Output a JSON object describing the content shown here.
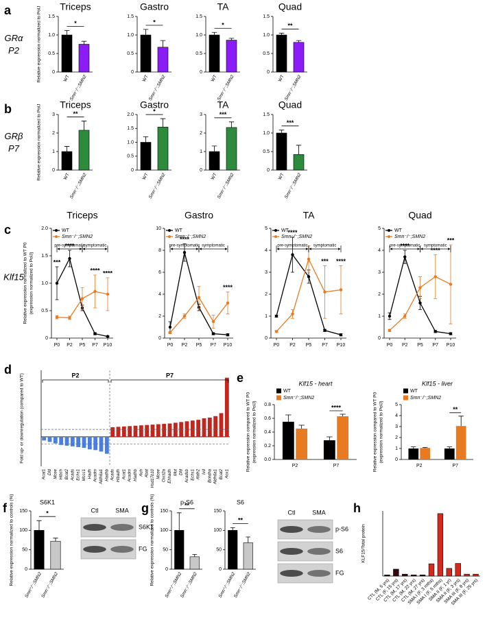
{
  "chart_data": [
    {
      "type": "bar",
      "panel": "a",
      "row_label": [
        "GRα",
        "P2"
      ],
      "title": "Triceps",
      "ylabel": "Relative expression normalized to PolJ",
      "categories": [
        "WT",
        "Smn⁻/⁻;SMN2"
      ],
      "values": [
        1.0,
        0.75
      ],
      "errors": [
        0.12,
        0.08
      ],
      "colors": [
        "#000000",
        "#8a1cf5"
      ],
      "ylim": [
        0,
        1.5
      ],
      "yticks": [
        0,
        0.5,
        {
          "value": 1,
          "label": "1.0"
        },
        1.5
      ],
      "significance": "*"
    },
    {
      "type": "bar",
      "title": "Gastro",
      "categories": [
        "WT",
        "Smn⁻/⁻;SMN2"
      ],
      "values": [
        1.0,
        0.67
      ],
      "errors": [
        0.15,
        0.18
      ],
      "colors": [
        "#000000",
        "#8a1cf5"
      ],
      "ylim": [
        0,
        1.5
      ],
      "yticks": [
        0,
        0.5,
        {
          "value": 1,
          "label": "1.0"
        },
        1.5
      ],
      "significance": "*"
    },
    {
      "type": "bar",
      "title": "TA",
      "categories": [
        "WT",
        "Smn⁻/⁻;SMN2"
      ],
      "values": [
        1.0,
        0.86
      ],
      "errors": [
        0.07,
        0.05
      ],
      "colors": [
        "#000000",
        "#8a1cf5"
      ],
      "ylim": [
        0,
        1.5
      ],
      "yticks": [
        0,
        0.5,
        {
          "value": 1,
          "label": "1.0"
        },
        1.5
      ],
      "significance": "*"
    },
    {
      "type": "bar",
      "title": "Quad",
      "categories": [
        "WT",
        "Smn⁻/⁻;SMN2"
      ],
      "values": [
        1.0,
        0.8
      ],
      "errors": [
        0.05,
        0.05
      ],
      "colors": [
        "#000000",
        "#8a1cf5"
      ],
      "ylim": [
        0,
        1.5
      ],
      "yticks": [
        0,
        0.5,
        {
          "value": 1,
          "label": "1.0"
        },
        1.5
      ],
      "significance": "**"
    },
    {
      "type": "bar",
      "panel": "b",
      "row_label": [
        "GRβ",
        "P7"
      ],
      "title": "Triceps",
      "ylabel": "Relative expression normalized to PolJ",
      "categories": [
        "WT",
        "Smn⁻/⁻;SMN2"
      ],
      "values": [
        1.0,
        2.15
      ],
      "errors": [
        0.28,
        0.5
      ],
      "colors": [
        "#000000",
        "#2e8b3e"
      ],
      "ylim": [
        0,
        3
      ],
      "yticks": [
        0,
        1,
        2,
        3
      ],
      "significance": "**"
    },
    {
      "type": "bar",
      "title": "Gastro",
      "categories": [
        "WT",
        "Smn⁻/⁻;SMN2"
      ],
      "values": [
        1.0,
        1.55
      ],
      "errors": [
        0.2,
        0.3
      ],
      "colors": [
        "#000000",
        "#2e8b3e"
      ],
      "ylim": [
        0,
        2
      ],
      "yticks": [
        0,
        0.5,
        {
          "value": 1,
          "label": "1.0"
        },
        1.5,
        {
          "value": 2,
          "label": "2.0"
        }
      ],
      "significance": "*"
    },
    {
      "type": "bar",
      "title": "TA",
      "categories": [
        "WT",
        "Smn⁻/⁻;SMN2"
      ],
      "values": [
        1.0,
        2.3
      ],
      "errors": [
        0.3,
        0.3
      ],
      "colors": [
        "#000000",
        "#2e8b3e"
      ],
      "ylim": [
        0,
        3
      ],
      "yticks": [
        0,
        1,
        2,
        3
      ],
      "significance": "***"
    },
    {
      "type": "bar",
      "title": "Quad",
      "categories": [
        "WT",
        "Smn⁻/⁻;SMN2"
      ],
      "values": [
        1.0,
        0.42
      ],
      "errors": [
        0.08,
        0.25
      ],
      "colors": [
        "#000000",
        "#2e8b3e"
      ],
      "ylim": [
        0,
        1.5
      ],
      "yticks": [
        0,
        0.5,
        {
          "value": 1,
          "label": "1.0"
        },
        1.5
      ],
      "significance": "***"
    },
    {
      "type": "line",
      "panel": "c",
      "row_label": [
        "Klf15"
      ],
      "title": "Triceps",
      "ylabel": [
        "Relative expression normalized to WT P0",
        "(expression normalized to PolJ)"
      ],
      "categories": [
        "P0",
        "P2",
        "P5",
        "P7",
        "P10"
      ],
      "series": [
        {
          "name": "WT",
          "color": "#000000",
          "values": [
            1.0,
            1.45,
            0.55,
            0.08,
            0.03
          ],
          "errors": [
            0.3,
            0.15,
            0.05,
            0.02,
            0.01
          ]
        },
        {
          "name": "Smn⁻/⁻;SMN2",
          "color": "#e87a22",
          "values": [
            0.38,
            0.37,
            0.72,
            0.85,
            0.8
          ],
          "errors": [
            0.03,
            0.03,
            0.2,
            0.3,
            0.3
          ]
        }
      ],
      "ylim": [
        0,
        2
      ],
      "yticks": [
        0,
        0.5,
        {
          "value": 1,
          "label": "1.0"
        },
        1.5,
        {
          "value": 2,
          "label": "2.0"
        }
      ],
      "stars": [
        "***",
        "****",
        null,
        "****",
        "****"
      ],
      "phases": [
        "pre-symptomatic",
        "symptomatic"
      ]
    },
    {
      "type": "line",
      "title": "Gastro",
      "categories": [
        "P0",
        "P2",
        "P5",
        "P7",
        "P10"
      ],
      "series": [
        {
          "name": "WT",
          "color": "#000000",
          "values": [
            1.0,
            7.8,
            2.8,
            0.4,
            0.3
          ],
          "errors": [
            0.5,
            0.8,
            0.3,
            0.1,
            0.1
          ]
        },
        {
          "name": "Smn⁻/⁻;SMN2",
          "color": "#e87a22",
          "values": [
            0.5,
            2.0,
            3.7,
            1.5,
            3.2
          ],
          "errors": [
            0.1,
            0.2,
            1.0,
            0.6,
            1.0
          ]
        }
      ],
      "ylim": [
        0,
        10
      ],
      "yticks": [
        0,
        2,
        4,
        6,
        8,
        10
      ],
      "stars": [
        null,
        "****",
        null,
        null,
        "****"
      ],
      "phases": [
        "pre-symptomatic",
        "symptomatic"
      ]
    },
    {
      "type": "line",
      "title": "TA",
      "categories": [
        "P0",
        "P2",
        "P5",
        "P7",
        "P10"
      ],
      "series": [
        {
          "name": "WT",
          "color": "#000000",
          "values": [
            1.0,
            3.8,
            2.8,
            0.35,
            0.15
          ],
          "errors": [
            0.05,
            0.8,
            0.3,
            0.05,
            0.05
          ]
        },
        {
          "name": "Smn⁻/⁻;SMN2",
          "color": "#e87a22",
          "values": [
            0.3,
            1.1,
            3.6,
            2.1,
            2.2
          ],
          "errors": [
            0.05,
            0.2,
            0.6,
            1.2,
            1.1
          ]
        }
      ],
      "ylim": [
        0,
        5
      ],
      "yticks": [
        0,
        1,
        2,
        3,
        4,
        5
      ],
      "stars": [
        null,
        "****",
        null,
        "***",
        "****"
      ],
      "phases": [
        "pre-symptomatic",
        "symptomatic"
      ]
    },
    {
      "type": "line",
      "title": "Quad",
      "categories": [
        "P0",
        "P2",
        "P5",
        "P7",
        "P10"
      ],
      "series": [
        {
          "name": "WT",
          "color": "#000000",
          "values": [
            1.0,
            3.7,
            1.6,
            0.3,
            0.2
          ],
          "errors": [
            0.15,
            0.3,
            0.3,
            0.05,
            0.05
          ]
        },
        {
          "name": "Smn⁻/⁻;SMN2",
          "color": "#e87a22",
          "values": [
            0.35,
            1.0,
            2.3,
            2.8,
            2.45
          ],
          "errors": [
            0.05,
            0.1,
            0.5,
            1.0,
            1.8
          ]
        }
      ],
      "ylim": [
        0,
        5
      ],
      "yticks": [
        0,
        1,
        2,
        3,
        4,
        5
      ],
      "stars": [
        null,
        "****",
        null,
        "****",
        "***"
      ],
      "phases": [
        "pre-symptomatic",
        "symptomatic"
      ]
    },
    {
      "type": "waterfall",
      "panel": "d",
      "ylabel": "Fold up- or downregulation (compared to WT)",
      "groups": [
        "P2",
        "P7"
      ],
      "categories": [
        "Acat1",
        "Dld",
        "Mcee",
        "Hibch",
        "Bcat2",
        "Acads",
        "Echs1",
        "Mccc1",
        "Hadh",
        "Acadm",
        "Aldh6a1",
        "Hadhb",
        "Acads",
        "Hibadh",
        "Acat1",
        "Acadm",
        "Hadhb",
        "Auh",
        "Abat",
        "Hsd17b10",
        "Mcee",
        "Oxct2a",
        "Ehhadh",
        "Mut",
        "Dld",
        "Acadsb",
        "Echs1",
        "Aldh2",
        "Ivd",
        "Bckdha",
        "Aldh6a1",
        "Bcat2",
        "Aox1"
      ],
      "values": [
        -0.5,
        -0.7,
        -0.9,
        -1.1,
        -1.2,
        -1.3,
        -1.4,
        -1.5,
        -1.7,
        -1.8,
        -2.0,
        -2.3,
        1.3,
        1.35,
        1.4,
        1.45,
        1.5,
        1.55,
        1.6,
        1.65,
        1.7,
        1.75,
        1.8,
        1.9,
        2.0,
        2.1,
        2.2,
        2.3,
        2.5,
        2.6,
        2.8,
        3.2,
        8.0
      ],
      "color_down": "#4a7fe0",
      "color_up": "#c0271e",
      "reference_lines": [
        1,
        -1
      ],
      "ylim": [
        -4,
        9
      ]
    },
    {
      "type": "grouped",
      "panel": "e",
      "title": "Klf15 - heart",
      "ylabel": [
        "Relative expression compared to WT P0",
        "(expression normalized to PolJ)"
      ],
      "categories": [
        "P2",
        "P7"
      ],
      "series": [
        {
          "name": "WT",
          "color": "#000000",
          "values": [
            0.55,
            0.28
          ],
          "errors": [
            0.1,
            0.05
          ]
        },
        {
          "name": "Smn⁻/⁻;SMN2",
          "color": "#e87a22",
          "values": [
            0.45,
            0.63
          ],
          "errors": [
            0.05,
            0.03
          ]
        }
      ],
      "ylim": [
        0,
        0.8
      ],
      "yticks": [
        {
          "value": 0,
          "label": "0.0"
        },
        0.2,
        0.4,
        0.6,
        0.8
      ],
      "stars": [
        null,
        "****"
      ]
    },
    {
      "type": "grouped",
      "title": "Klf15 - liver",
      "ylabel": [
        "Relative expression compared to WT P0",
        "(expression normalized to PolJ)"
      ],
      "categories": [
        "P2",
        "P7"
      ],
      "series": [
        {
          "name": "WT",
          "color": "#000000",
          "values": [
            1.0,
            1.0
          ],
          "errors": [
            0.15,
            0.15
          ]
        },
        {
          "name": "Smn⁻/⁻;SMN2",
          "color": "#e87a22",
          "values": [
            1.05,
            3.05
          ],
          "errors": [
            0.05,
            0.9
          ]
        }
      ],
      "ylim": [
        0,
        5
      ],
      "yticks": [
        0,
        1,
        2,
        3,
        4,
        5
      ],
      "stars": [
        null,
        "**"
      ]
    },
    {
      "type": "bar",
      "panel": "f",
      "title": "S6K1",
      "ylabel": "Relative expression normalized to controls (%)",
      "categories": [
        "Smn⁺/⁻;SMN2",
        "Smn⁻/⁻;SMN2"
      ],
      "values": [
        100,
        72
      ],
      "errors": [
        25,
        8
      ],
      "colors": [
        "#000000",
        "#c8c8c8"
      ],
      "ylim": [
        0,
        150
      ],
      "yticks": [
        0,
        50,
        100,
        150
      ],
      "significance": "*"
    },
    {
      "type": "bar",
      "panel": "g",
      "title": "p-S6",
      "ylabel": "Relative expression normalized to controls (%)",
      "categories": [
        "Smn⁺/⁻;SMN2",
        "Smn⁻/⁻;SMN2"
      ],
      "values": [
        100,
        32
      ],
      "errors": [
        45,
        6
      ],
      "colors": [
        "#000000",
        "#c8c8c8"
      ],
      "ylim": [
        0,
        150
      ],
      "yticks": [
        0,
        50,
        100,
        150
      ],
      "significance": "**"
    },
    {
      "type": "bar",
      "title": "S6",
      "categories": [
        "Smn⁺/⁻;SMN2",
        "Smn⁻/⁻;SMN2"
      ],
      "values": [
        100,
        68
      ],
      "errors": [
        7,
        15
      ],
      "colors": [
        "#000000",
        "#c8c8c8"
      ],
      "ylim": [
        0,
        150
      ],
      "yticks": [
        0,
        50,
        100,
        150
      ],
      "significance": "**"
    },
    {
      "type": "bar",
      "panel": "h",
      "ylabel": "KLF15/Total protein",
      "categories": [
        "CTL (M, 5 yrs)",
        "CTL (F, 15 yrs)",
        "CTL (M, 17 yrs)",
        "CTL (M, 22 yrs)",
        "CTL (M, 27 yrs)",
        "SMA I (F, 3 mths)",
        "SMA I (F, 5 mths)",
        "SMA II (F, 1 yr)",
        "SMA II (F, 3 yrs)",
        "SMA III (F, 8 yrs)",
        "SMA III (F, 25 yrs)"
      ],
      "values": [
        3,
        18,
        5,
        3,
        3,
        32,
        163,
        20,
        33,
        5,
        5
      ],
      "colors": [
        "#3a0a0a",
        "#3a0a0a",
        "#3a0a0a",
        "#3a0a0a",
        "#3a0a0a",
        "#d42a1e",
        "#d42a1e",
        "#d42a1e",
        "#d42a1e",
        "#d42a1e",
        "#d42a1e"
      ],
      "ylim": [
        0,
        170
      ]
    }
  ],
  "blots": [
    {
      "columns": [
        "Ctl",
        "SMA"
      ],
      "rows": [
        "S6K1",
        "FG"
      ]
    },
    {
      "columns": [
        "Ctl",
        "SMA"
      ],
      "rows": [
        "p-S6",
        "S6",
        "FG"
      ]
    }
  ]
}
